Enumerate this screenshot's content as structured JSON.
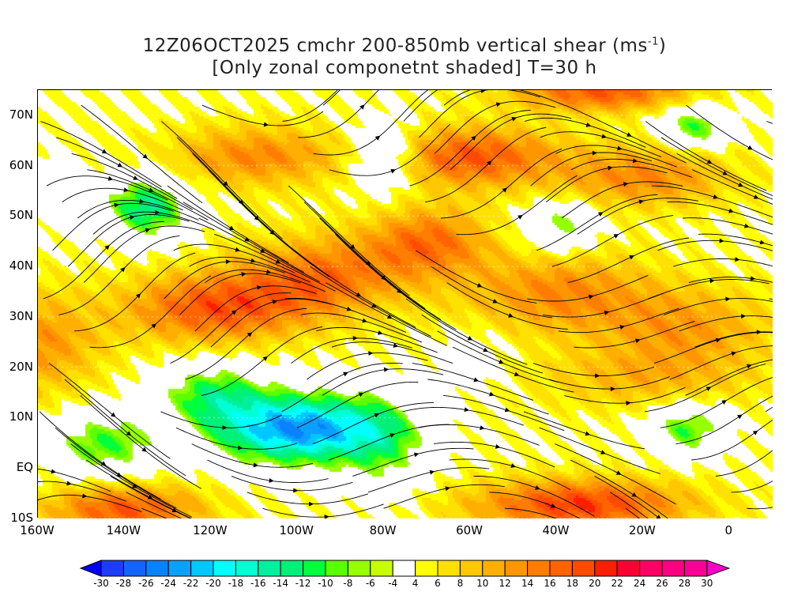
{
  "title": {
    "line1": "12Z06OCT2025 cmchr 200-850mb vertical shear (ms",
    "line1_sup": "-1",
    "line1_end": ")",
    "line2": "[Only zonal componetnt shaded] T=30 h"
  },
  "axes": {
    "y_ticks": [
      "70N",
      "60N",
      "50N",
      "40N",
      "30N",
      "20N",
      "10N",
      "EQ",
      "10S"
    ],
    "x_ticks": [
      "160W",
      "140W",
      "120W",
      "100W",
      "80W",
      "60W",
      "40W",
      "20W",
      "0"
    ]
  },
  "colorbar": {
    "labels": [
      "-30",
      "-28",
      "-26",
      "-24",
      "-22",
      "-20",
      "-18",
      "-16",
      "-14",
      "-12",
      "-10",
      "-8",
      "-6",
      "-4",
      "4",
      "6",
      "8",
      "10",
      "12",
      "14",
      "16",
      "18",
      "20",
      "22",
      "24",
      "26",
      "28",
      "30"
    ],
    "colors": [
      "#0000ff",
      "#1e3cff",
      "#1464ff",
      "#0a82ff",
      "#0aa0ff",
      "#00c8ff",
      "#00ffff",
      "#00ffd2",
      "#00f0a0",
      "#00f078",
      "#00ff3c",
      "#5aff00",
      "#96ff00",
      "#c8ff00",
      "#ffffff",
      "#ffff00",
      "#ffe100",
      "#ffc800",
      "#ffaf00",
      "#ff9600",
      "#ff7d00",
      "#ff6400",
      "#ff4b00",
      "#ff1e00",
      "#ff0032",
      "#ff0064",
      "#ff0082",
      "#ff0096",
      "#ff00c8"
    ]
  }
}
